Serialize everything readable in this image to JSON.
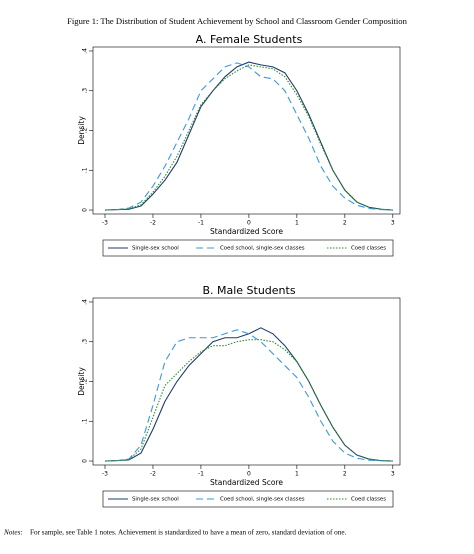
{
  "figure_title": "Figure 1: The Distribution of Student Achievement by School and Classroom Gender Composition",
  "chart_data": [
    {
      "type": "line",
      "title": "A. Female Students",
      "xlabel": "Standardized Score",
      "ylabel": "Density",
      "x": [
        -3,
        -2.75,
        -2.5,
        -2.25,
        -2,
        -1.75,
        -1.5,
        -1.25,
        -1,
        -0.75,
        -0.5,
        -0.25,
        0,
        0.25,
        0.5,
        0.75,
        1,
        1.25,
        1.5,
        1.75,
        2,
        2.25,
        2.5,
        2.75,
        3
      ],
      "series": [
        {
          "name": "Single-sex school",
          "color": "#1f3b6e",
          "dash": "solid",
          "values": [
            0,
            0.001,
            0.002,
            0.01,
            0.04,
            0.075,
            0.12,
            0.19,
            0.26,
            0.3,
            0.335,
            0.36,
            0.372,
            0.365,
            0.36,
            0.345,
            0.3,
            0.24,
            0.17,
            0.1,
            0.05,
            0.02,
            0.007,
            0.002,
            0
          ]
        },
        {
          "name": "Coed school, single-sex classes",
          "color": "#3a9ad9",
          "dash": "dashed",
          "values": [
            0,
            0.001,
            0.005,
            0.02,
            0.06,
            0.11,
            0.17,
            0.23,
            0.3,
            0.33,
            0.36,
            0.37,
            0.36,
            0.335,
            0.33,
            0.3,
            0.24,
            0.18,
            0.11,
            0.06,
            0.03,
            0.012,
            0.004,
            0.001,
            0
          ]
        },
        {
          "name": "Coed classes",
          "color": "#2e8b2e",
          "dash": "dotted",
          "values": [
            0,
            0.001,
            0.003,
            0.013,
            0.045,
            0.085,
            0.135,
            0.2,
            0.265,
            0.3,
            0.33,
            0.35,
            0.365,
            0.36,
            0.355,
            0.335,
            0.29,
            0.235,
            0.165,
            0.1,
            0.05,
            0.02,
            0.007,
            0.002,
            0
          ]
        }
      ],
      "xlim": [
        -3.25,
        3.15
      ],
      "ylim": [
        -0.01,
        0.41
      ],
      "xticks": [
        -3,
        -2,
        -1,
        0,
        1,
        2,
        3
      ],
      "yticks": [
        0,
        {
          "value": 0.1,
          "label": ".1"
        },
        {
          "value": 0.2,
          "label": ".2"
        },
        {
          "value": 0.3,
          "label": ".3"
        },
        {
          "value": 0.4,
          "label": ".4"
        }
      ]
    },
    {
      "type": "line",
      "title": "B. Male Students",
      "xlabel": "Standardized Score",
      "ylabel": "Density",
      "x": [
        -3,
        -2.75,
        -2.5,
        -2.25,
        -2,
        -1.75,
        -1.5,
        -1.25,
        -1,
        -0.75,
        -0.5,
        -0.25,
        0,
        0.25,
        0.5,
        0.75,
        1,
        1.25,
        1.5,
        1.75,
        2,
        2.25,
        2.5,
        2.75,
        3
      ],
      "series": [
        {
          "name": "Single-sex school",
          "color": "#1f3b6e",
          "dash": "solid",
          "values": [
            0,
            0.001,
            0.003,
            0.02,
            0.08,
            0.15,
            0.2,
            0.24,
            0.27,
            0.3,
            0.31,
            0.31,
            0.32,
            0.335,
            0.32,
            0.29,
            0.25,
            0.2,
            0.14,
            0.085,
            0.04,
            0.015,
            0.005,
            0.001,
            0
          ]
        },
        {
          "name": "Coed school, single-sex classes",
          "color": "#3a9ad9",
          "dash": "dashed",
          "values": [
            0,
            0.001,
            0.005,
            0.04,
            0.14,
            0.25,
            0.3,
            0.31,
            0.31,
            0.31,
            0.32,
            0.33,
            0.32,
            0.3,
            0.27,
            0.24,
            0.21,
            0.16,
            0.1,
            0.05,
            0.02,
            0.007,
            0.002,
            0.001,
            0
          ]
        },
        {
          "name": "Coed classes",
          "color": "#2e8b2e",
          "dash": "dotted",
          "values": [
            0,
            0.001,
            0.004,
            0.03,
            0.11,
            0.19,
            0.22,
            0.25,
            0.275,
            0.29,
            0.29,
            0.3,
            0.305,
            0.305,
            0.3,
            0.28,
            0.25,
            0.2,
            0.14,
            0.085,
            0.04,
            0.015,
            0.005,
            0.001,
            0
          ]
        }
      ],
      "xlim": [
        -3.25,
        3.15
      ],
      "ylim": [
        -0.01,
        0.41
      ],
      "xticks": [
        -3,
        -2,
        -1,
        0,
        1,
        2,
        3
      ],
      "yticks": [
        0,
        {
          "value": 0.1,
          "label": ".1"
        },
        {
          "value": 0.2,
          "label": ".2"
        },
        {
          "value": 0.3,
          "label": ".3"
        },
        {
          "value": 0.4,
          "label": ".4"
        }
      ]
    }
  ],
  "notes_label": "Notes:",
  "notes": "For sample, see Table 1 notes. Achievement is standardized to have a mean of zero, standard deviation of one."
}
